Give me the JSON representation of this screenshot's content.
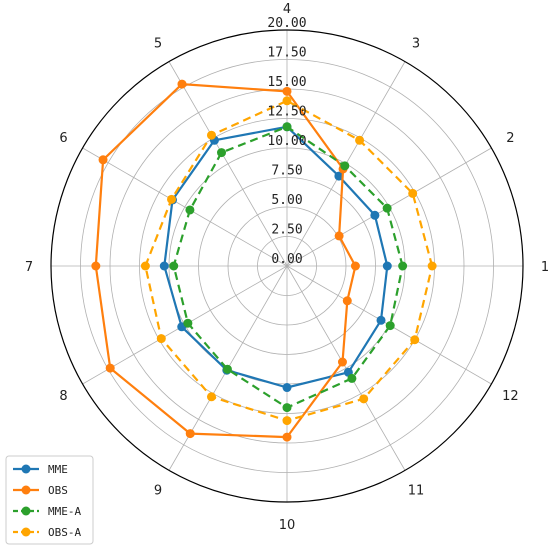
{
  "chart_data": {
    "type": "line",
    "subtype": "polar",
    "theta_labels": [
      "1",
      "2",
      "3",
      "4",
      "5",
      "6",
      "7",
      "8",
      "9",
      "10",
      "11",
      "12"
    ],
    "r_ticks": [
      "0.00",
      "2.50",
      "5.00",
      "7.50",
      "10.00",
      "12.50",
      "15.00",
      "17.50",
      "20.00"
    ],
    "rlim": [
      0,
      20
    ],
    "grid": true,
    "legend_position": "bottom-left",
    "series": [
      {
        "name": "MME",
        "color": "#1f77b4",
        "style": "solid",
        "values": [
          8.5,
          8.6,
          8.8,
          11.8,
          12.3,
          11.2,
          10.4,
          10.3,
          10.2,
          10.3,
          10.4,
          9.2
        ]
      },
      {
        "name": "OBS",
        "color": "#ff7f0e",
        "style": "solid",
        "values": [
          5.8,
          5.1,
          9.5,
          14.8,
          17.8,
          18.0,
          16.2,
          17.3,
          16.4,
          14.5,
          9.4,
          5.9
        ]
      },
      {
        "name": "MME-A",
        "color": "#2ca02c",
        "style": "dashed",
        "values": [
          9.8,
          9.8,
          9.8,
          11.8,
          11.1,
          9.5,
          9.6,
          9.7,
          10.1,
          12.0,
          11.0,
          10.1
        ]
      },
      {
        "name": "OBS-A",
        "color": "#ffa500",
        "style": "dashed",
        "values": [
          12.3,
          12.3,
          12.3,
          14.0,
          12.8,
          11.3,
          12.0,
          12.3,
          12.8,
          13.1,
          13.0,
          12.5
        ]
      }
    ]
  }
}
